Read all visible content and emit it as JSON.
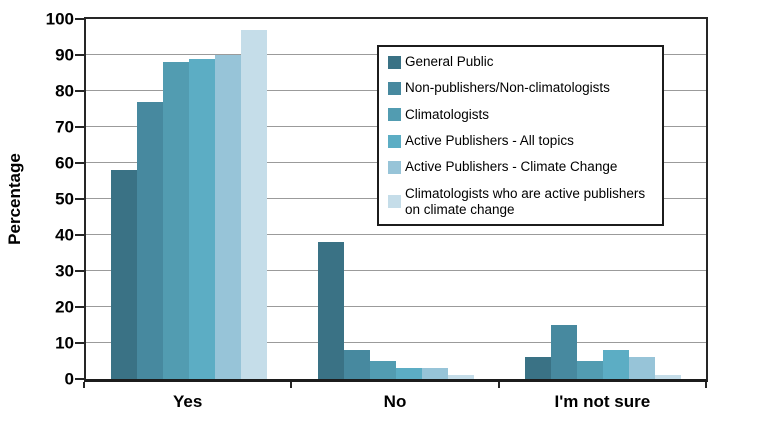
{
  "chart_data": {
    "type": "bar",
    "title": "",
    "xlabel": "",
    "ylabel": "Percentage",
    "ylim": [
      0,
      100
    ],
    "ytick_step": 10,
    "yticks": [
      0,
      10,
      20,
      30,
      40,
      50,
      60,
      70,
      80,
      90,
      100
    ],
    "grid": true,
    "legend_position": "upper-right-inside",
    "categories": [
      "Yes",
      "No",
      "I'm not sure"
    ],
    "series": [
      {
        "name": "General Public",
        "color": "#3a7285",
        "values": [
          58,
          38,
          6
        ]
      },
      {
        "name": "Non-publishers/Non-climatologists",
        "color": "#47899f",
        "values": [
          77,
          8,
          15
        ]
      },
      {
        "name": "Climatologists",
        "color": "#529cb1",
        "values": [
          88,
          5,
          5
        ]
      },
      {
        "name": "Active Publishers - All topics",
        "color": "#5cadc4",
        "values": [
          89,
          3,
          8
        ]
      },
      {
        "name": "Active Publishers - Climate Change",
        "color": "#97c4d8",
        "values": [
          90,
          3,
          6
        ]
      },
      {
        "name": "Climatologists who are active publishers on climate change",
        "color": "#c5dde9",
        "values": [
          97,
          1,
          1
        ]
      }
    ],
    "axis_color": "#262626",
    "gridline_color": "#9b9b9b"
  }
}
